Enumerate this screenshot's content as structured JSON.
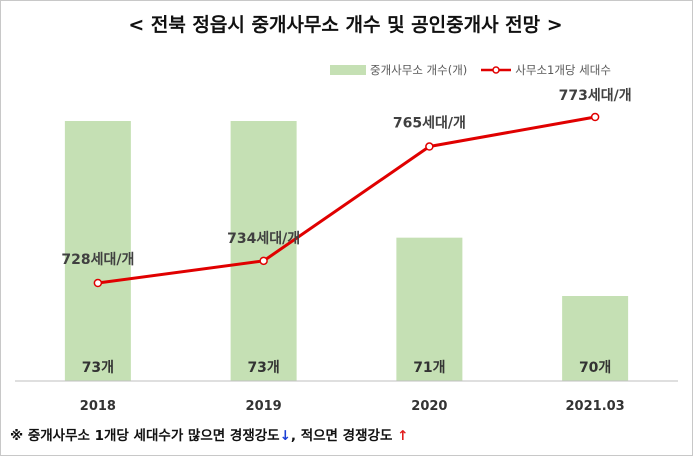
{
  "chart_data": {
    "type": "bar+line",
    "title": "< 전북 정읍시 중개사무소 개수 및 공인중개사 전망 >",
    "categories": [
      "2018",
      "2019",
      "2020",
      "2021.03"
    ],
    "series": [
      {
        "name": "중개사무소 개수(개)",
        "type": "bar",
        "values": [
          73,
          73,
          71,
          70
        ],
        "labels": [
          "73개",
          "73개",
          "71개",
          "70개"
        ],
        "color": "#c5e0b4"
      },
      {
        "name": "사무소1개당 세대수",
        "type": "line",
        "values": [
          728,
          734,
          765,
          773
        ],
        "labels": [
          "728세대/개",
          "734세대/개",
          "765세대/개",
          "773세대/개"
        ],
        "color": "#e00000"
      }
    ],
    "legend_position": "top-right",
    "grid": false,
    "note": {
      "text_a": "※ 중개사무소 1개당 세대수가 많으면 경쟁강도",
      "arrow_down": "↓",
      "text_b": ", 적으면 경쟁강도 ",
      "arrow_up": "↑"
    }
  }
}
